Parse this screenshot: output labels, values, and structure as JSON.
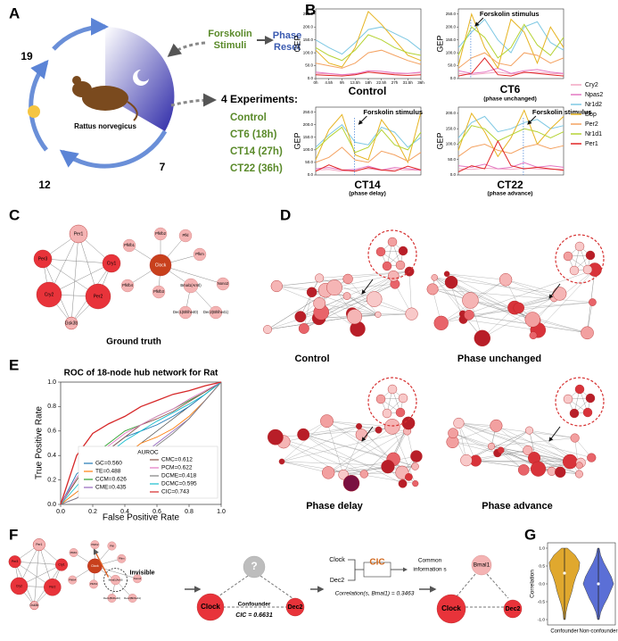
{
  "panel_a": {
    "letter": "A",
    "hours": [
      "19",
      "7",
      "12"
    ],
    "species": "Rattus norvegicus",
    "stimuli_lines": [
      "Forskolin",
      "Stimuli"
    ],
    "reset_lines": [
      "Phase",
      "Reset"
    ],
    "experiments_title": "4 Experiments:",
    "experiments": [
      "Control",
      "CT6   (18h)",
      "CT14  (27h)",
      "CT22  (36h)"
    ]
  },
  "panel_b": {
    "letter": "B"
  },
  "panel_c": {
    "letter": "C",
    "caption": "Ground truth",
    "cluster_1": [
      "Per1",
      "Per3",
      "Cry1",
      "Cry2",
      "Per2",
      "Gsk3b"
    ],
    "center": "Clock",
    "cluster_2": [
      "Pfkfb2",
      "Pfkl",
      "Pfkfb1",
      "Pfkm",
      "Pfkfb4",
      "Pfkfb3",
      "Bmal1(Arntl)",
      "Nono2",
      "Dec1(Bhlhe40)",
      "Dec2(Bhlhe41)"
    ]
  },
  "panel_d": {
    "letter": "D",
    "captions": [
      "Control",
      "Phase unchanged",
      "Phase delay",
      "Phase advance"
    ]
  },
  "panel_e": {
    "letter": "E"
  },
  "panel_f": {
    "letter": "F",
    "invisible": "Invisible",
    "unknown": "?",
    "confounder": "Confounder",
    "cic_value": "CIC = 0.6631",
    "clock": "Clock",
    "dec2": "Dec2",
    "bmal1": "Bmal1",
    "cic": "CIC",
    "common_lines": [
      "Common",
      "information s"
    ],
    "correlation": "Correlation(s, Bmal1) = 0.3463"
  },
  "panel_g": {
    "letter": "G"
  },
  "chart_data": [
    {
      "type": "line",
      "title": "Control",
      "ylabel": "GEP",
      "categories": [
        "0h",
        "4.5h",
        "9h",
        "13.5h",
        "18h",
        "22.5h",
        "27h",
        "31.5h",
        "36h"
      ],
      "ylim": [
        0,
        270
      ],
      "yticks": [
        {
          "value": 0,
          "label": "0.0"
        },
        {
          "value": 50,
          "label": "50.0"
        },
        {
          "value": 100,
          "label": "100.0"
        },
        {
          "value": 150,
          "label": "150.0"
        },
        {
          "value": 200,
          "label": "200.0"
        },
        {
          "value": 250,
          "label": "250.0"
        }
      ],
      "series": [
        {
          "values": [
            20,
            18,
            15,
            20,
            25,
            22,
            18,
            20,
            22
          ]
        },
        {
          "values": [
            25,
            20,
            15,
            18,
            30,
            28,
            22,
            20,
            25
          ]
        },
        {
          "values": [
            150,
            120,
            95,
            140,
            190,
            200,
            175,
            150,
            110
          ]
        },
        {
          "values": [
            110,
            60,
            45,
            120,
            260,
            210,
            150,
            90,
            70
          ]
        },
        {
          "values": [
            60,
            50,
            40,
            60,
            100,
            110,
            90,
            70,
            55
          ]
        },
        {
          "values": [
            120,
            90,
            70,
            110,
            170,
            150,
            120,
            100,
            90
          ]
        },
        {
          "values": [
            15,
            12,
            10,
            15,
            25,
            20,
            15,
            12,
            15
          ]
        }
      ]
    },
    {
      "type": "line",
      "title": "CT6",
      "subtitle": "(phase unchanged)",
      "ylabel": "GEP",
      "annotation": "Forskolin stimulus",
      "ylim": [
        0,
        270
      ],
      "yticks": [
        {
          "value": 0,
          "label": "0.0"
        },
        {
          "value": 50,
          "label": "50.0"
        },
        {
          "value": 100,
          "label": "100.0"
        },
        {
          "value": 150,
          "label": "150.0"
        },
        {
          "value": 200,
          "label": "200.0"
        },
        {
          "value": 250,
          "label": "250.0"
        }
      ],
      "series": [
        {
          "name": "Cry2",
          "color": "#f2a7c3",
          "values": [
            20,
            15,
            20,
            25,
            18,
            22,
            25,
            20,
            18
          ]
        },
        {
          "name": "Npas2",
          "color": "#e377c2",
          "values": [
            30,
            20,
            25,
            40,
            20,
            30,
            35,
            25,
            20
          ]
        },
        {
          "name": "Nr1d2",
          "color": "#7ec8e3",
          "values": [
            120,
            180,
            230,
            150,
            100,
            200,
            220,
            140,
            110
          ]
        },
        {
          "name": "Dbp",
          "color": "#e6b422",
          "values": [
            50,
            250,
            120,
            40,
            230,
            180,
            60,
            200,
            120
          ]
        },
        {
          "name": "Per2",
          "color": "#f4a261",
          "values": [
            40,
            80,
            100,
            60,
            50,
            100,
            90,
            60,
            80
          ]
        },
        {
          "name": "Nr1d1",
          "color": "#b5d334",
          "values": [
            90,
            200,
            160,
            80,
            120,
            210,
            130,
            90,
            160
          ]
        },
        {
          "name": "Per1",
          "color": "#e02424",
          "values": [
            10,
            20,
            80,
            15,
            10,
            25,
            20,
            15,
            10
          ]
        }
      ]
    },
    {
      "type": "line",
      "title": "CT14",
      "subtitle": "(phase delay)",
      "ylabel": "GEP",
      "annotation": "Forskolin stimulus",
      "ylim": [
        0,
        270
      ],
      "yticks": [
        {
          "value": 0,
          "label": "0.0"
        },
        {
          "value": 50,
          "label": "50.0"
        },
        {
          "value": 100,
          "label": "100.0"
        },
        {
          "value": 150,
          "label": "150.0"
        },
        {
          "value": 200,
          "label": "200.0"
        },
        {
          "value": 250,
          "label": "250.0"
        }
      ],
      "series": [
        {
          "values": [
            20,
            22,
            15,
            20,
            25,
            18,
            22,
            20,
            18
          ]
        },
        {
          "values": [
            25,
            30,
            20,
            22,
            35,
            20,
            30,
            25,
            20
          ]
        },
        {
          "values": [
            110,
            160,
            200,
            130,
            120,
            190,
            170,
            110,
            150
          ]
        },
        {
          "values": [
            60,
            180,
            240,
            80,
            60,
            220,
            150,
            50,
            250
          ]
        },
        {
          "values": [
            50,
            70,
            110,
            60,
            50,
            95,
            80,
            55,
            90
          ]
        },
        {
          "values": [
            100,
            150,
            190,
            90,
            110,
            180,
            120,
            100,
            170
          ]
        },
        {
          "values": [
            15,
            40,
            20,
            15,
            30,
            20,
            15,
            35,
            20
          ]
        }
      ]
    },
    {
      "type": "line",
      "title": "CT22",
      "subtitle": "(phase advance)",
      "ylabel": "GEP",
      "annotation": "Forskolin stimulus",
      "ylim": [
        0,
        220
      ],
      "yticks": [
        {
          "value": 0,
          "label": "0.0"
        },
        {
          "value": 50,
          "label": "50.0"
        },
        {
          "value": 100,
          "label": "100.0"
        },
        {
          "value": 150,
          "label": "150.0"
        },
        {
          "value": 200,
          "label": "200.0"
        }
      ],
      "series": [
        {
          "values": [
            20,
            18,
            22,
            20,
            18,
            22,
            20,
            18,
            20
          ]
        },
        {
          "values": [
            30,
            25,
            35,
            20,
            25,
            40,
            25,
            30,
            25
          ]
        },
        {
          "values": [
            120,
            170,
            190,
            140,
            150,
            170,
            180,
            150,
            160
          ]
        },
        {
          "values": [
            80,
            200,
            140,
            60,
            120,
            210,
            100,
            150,
            190
          ]
        },
        {
          "values": [
            60,
            90,
            100,
            80,
            70,
            90,
            100,
            85,
            95
          ]
        },
        {
          "values": [
            100,
            160,
            150,
            110,
            130,
            150,
            140,
            120,
            140
          ]
        },
        {
          "values": [
            10,
            30,
            20,
            110,
            30,
            20,
            25,
            20,
            15
          ]
        }
      ]
    },
    {
      "type": "roc",
      "title": "ROC of 18-node hub network for Rat",
      "xlabel": "False Positive Rate",
      "ylabel": "True Positive Rate",
      "legend_title": "AUROC",
      "x": [
        0,
        0.1,
        0.2,
        0.3,
        0.4,
        0.5,
        0.6,
        0.7,
        0.8,
        0.9,
        1.0
      ],
      "xlim": [
        0,
        1
      ],
      "ylim": [
        0,
        1
      ],
      "xticks": [
        {
          "value": 0,
          "label": "0.0"
        },
        {
          "value": 0.2,
          "label": "0.2"
        },
        {
          "value": 0.4,
          "label": "0.4"
        },
        {
          "value": 0.6,
          "label": "0.6"
        },
        {
          "value": 0.8,
          "label": "0.8"
        },
        {
          "value": 1,
          "label": "1.0"
        }
      ],
      "yticks": [
        {
          "value": 0,
          "label": "0.0"
        },
        {
          "value": 0.2,
          "label": "0.2"
        },
        {
          "value": 0.4,
          "label": "0.4"
        },
        {
          "value": 0.6,
          "label": "0.6"
        },
        {
          "value": 0.8,
          "label": "0.8"
        },
        {
          "value": 1,
          "label": "1.0"
        }
      ],
      "series": [
        {
          "name": "GC=0.560",
          "color": "#1f77b4",
          "values": [
            0,
            0.25,
            0.35,
            0.45,
            0.55,
            0.6,
            0.65,
            0.72,
            0.8,
            0.9,
            1
          ]
        },
        {
          "name": "TE=0.488",
          "color": "#ff7f0e",
          "values": [
            0,
            0.1,
            0.2,
            0.3,
            0.4,
            0.5,
            0.55,
            0.62,
            0.72,
            0.85,
            1
          ]
        },
        {
          "name": "CCM=0.626",
          "color": "#2ca02c",
          "values": [
            0,
            0.2,
            0.4,
            0.5,
            0.6,
            0.65,
            0.72,
            0.78,
            0.85,
            0.92,
            1
          ]
        },
        {
          "name": "CME=0.435",
          "color": "#9467bd",
          "values": [
            0,
            0.05,
            0.15,
            0.25,
            0.3,
            0.4,
            0.5,
            0.6,
            0.7,
            0.85,
            1
          ]
        },
        {
          "name": "CMC=0.612",
          "color": "#8c564b",
          "values": [
            0,
            0.2,
            0.35,
            0.45,
            0.55,
            0.65,
            0.7,
            0.76,
            0.84,
            0.92,
            1
          ]
        },
        {
          "name": "PCM=0.622",
          "color": "#e377c2",
          "values": [
            0,
            0.22,
            0.38,
            0.48,
            0.58,
            0.65,
            0.72,
            0.78,
            0.86,
            0.93,
            1
          ]
        },
        {
          "name": "DCME=0.418",
          "color": "#7f7f7f",
          "values": [
            0,
            0.05,
            0.12,
            0.2,
            0.3,
            0.38,
            0.48,
            0.58,
            0.7,
            0.85,
            1
          ]
        },
        {
          "name": "DCMC=0.595",
          "color": "#17becf",
          "values": [
            0,
            0.15,
            0.3,
            0.42,
            0.52,
            0.6,
            0.68,
            0.75,
            0.82,
            0.9,
            1
          ]
        },
        {
          "name": "CIC=0.743",
          "color": "#d62728",
          "values": [
            0,
            0.4,
            0.58,
            0.66,
            0.72,
            0.8,
            0.85,
            0.9,
            0.93,
            0.97,
            1
          ]
        }
      ]
    },
    {
      "type": "violin",
      "ylabel": "Correlation",
      "categories": [
        "Confounder",
        "Non-confounder"
      ],
      "ylim": [
        -1.15,
        1.15
      ],
      "yticks": [
        {
          "value": -1,
          "label": "-1.0"
        },
        {
          "value": -0.5,
          "label": "-0.5"
        },
        {
          "value": 0,
          "label": "0.0"
        },
        {
          "value": 0.5,
          "label": "0.5"
        },
        {
          "value": 1,
          "label": "1.0"
        }
      ],
      "series": [
        {
          "color": "#e0a82e",
          "min": -1.0,
          "max": 1.0,
          "median": 0.3,
          "density": [
            0.05,
            0.1,
            0.2,
            0.35,
            0.5,
            0.6,
            0.75,
            0.95,
            1,
            0.7,
            0.2
          ]
        },
        {
          "color": "#5b6fd6",
          "min": -1.0,
          "max": 1.0,
          "median": 0.0,
          "density": [
            0.05,
            0.15,
            0.35,
            0.6,
            0.8,
            1,
            0.85,
            0.6,
            0.35,
            0.15,
            0.05
          ]
        }
      ]
    }
  ]
}
